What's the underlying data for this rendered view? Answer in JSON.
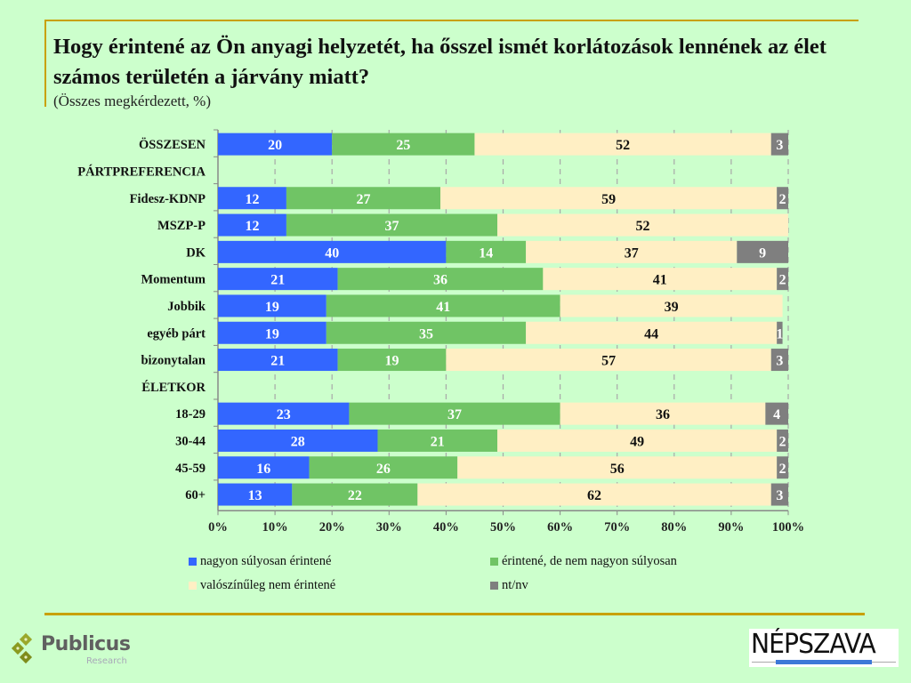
{
  "header": {
    "title": "Hogy érintené az Ön anyagi helyzetét, ha ősszel ismét korlátozások lennének az élet számos területén a járvány miatt?",
    "subtitle": "(Összes megkérdezett, %)"
  },
  "colors": {
    "background": "#ccffcc",
    "accent_line": "#c8a000",
    "series": [
      "#3366ff",
      "#70c465",
      "#ffefc4",
      "#7f7f7f"
    ]
  },
  "chart_data": {
    "type": "bar",
    "orientation": "horizontal",
    "stacked": true,
    "title": "Hogy érintené az Ön anyagi helyzetét, ha ősszel ismét korlátozások lennének az élet számos területén a járvány miatt?",
    "subtitle": "(Összes megkérdezett, %)",
    "xlabel": "",
    "ylabel": "",
    "xlim": [
      0,
      100
    ],
    "x_ticks": [
      "0%",
      "10%",
      "20%",
      "30%",
      "40%",
      "50%",
      "60%",
      "70%",
      "80%",
      "90%",
      "100%"
    ],
    "grid": "vertical dashed",
    "legend_position": "bottom",
    "categories": [
      "ÖSSZESEN",
      "PÁRTPREFERENCIA",
      "Fidesz-KDNP",
      "MSZP-P",
      "DK",
      "Momentum",
      "Jobbik",
      "egyéb párt",
      "bizonytalan",
      "ÉLETKOR",
      "18-29",
      "30-44",
      "45-59",
      "60+"
    ],
    "category_is_header": [
      false,
      true,
      false,
      false,
      false,
      false,
      false,
      false,
      false,
      true,
      false,
      false,
      false,
      false
    ],
    "series": [
      {
        "name": "nagyon súlyosan érintené",
        "color": "#3366ff",
        "label_color": "#ffffff",
        "values": [
          20,
          null,
          12,
          12,
          40,
          21,
          19,
          19,
          21,
          null,
          23,
          28,
          16,
          13
        ]
      },
      {
        "name": "érintené, de nem nagyon súlyosan",
        "color": "#70c465",
        "label_color": "#ffffff",
        "values": [
          25,
          null,
          27,
          37,
          14,
          36,
          41,
          35,
          19,
          null,
          37,
          21,
          26,
          22
        ]
      },
      {
        "name": "valószínűleg nem érintené",
        "color": "#ffefc4",
        "label_color": "#111111",
        "values": [
          52,
          null,
          59,
          52,
          37,
          41,
          39,
          44,
          57,
          null,
          36,
          49,
          56,
          62
        ]
      },
      {
        "name": "nt/nv",
        "color": "#7f7f7f",
        "label_color": "#ffffff",
        "values": [
          3,
          null,
          2,
          null,
          9,
          2,
          null,
          1,
          3,
          null,
          4,
          2,
          2,
          3
        ]
      }
    ]
  },
  "footer": {
    "left_logo": {
      "name": "Publicus",
      "sub": "Research"
    },
    "right_logo": {
      "name": "NÉPSZAVA"
    }
  }
}
